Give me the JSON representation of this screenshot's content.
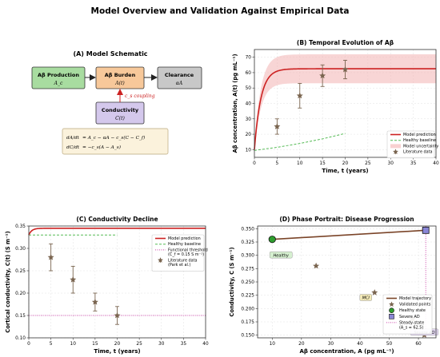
{
  "figure": {
    "title": "Model Overview and Validation Against Empirical Data"
  },
  "schematic": {
    "title": "(A) Model Schematic",
    "nodes": {
      "production": {
        "label": "Aβ Production",
        "sub": "A_c"
      },
      "burden": {
        "label": "Aβ Burden",
        "sub": "A(t)"
      },
      "clearance": {
        "label": "Clearance",
        "sub": "αA"
      },
      "conductivity": {
        "label": "Conductivity",
        "sub": "C(t)"
      }
    },
    "coupling_label": "c_s coupling",
    "equations": {
      "eq1_lhs": "dA/dt",
      "eq1_rhs": "= A_c − αA − c_s(C − C_f)",
      "eq2_lhs": "dC/dt",
      "eq2_rhs": "= −c_s(A − A_s)"
    },
    "colors": {
      "production": "#a8dca0",
      "burden": "#f7c89a",
      "clearance": "#c8c8c8",
      "conductivity": "#d4c8ec",
      "coupling": "#cc2222",
      "equation_box": "#fbf2dc"
    }
  },
  "chart_data": [
    {
      "id": "B",
      "type": "line",
      "title": "(B) Temporal Evolution of Aβ",
      "xlabel": "Time, t (years)",
      "ylabel": "Aβ concentration, A(t) (pg mL⁻¹)",
      "xlim": [
        0,
        40
      ],
      "ylim": [
        5,
        75
      ],
      "xticks": [
        0,
        5,
        10,
        15,
        20,
        25,
        30,
        35,
        40
      ],
      "yticks": [
        10,
        20,
        30,
        40,
        50,
        60,
        70
      ],
      "grid": true,
      "legend_position": "lower-right",
      "series": [
        {
          "name": "Model prediction",
          "kind": "curve",
          "color": "#cc2222",
          "model": {
            "start": 10,
            "plateau": 62.5,
            "rate": 0.7,
            "t_max": 40
          }
        },
        {
          "name": "Healthy baseline",
          "kind": "dashed",
          "color": "#55bb55",
          "x": [
            0,
            5,
            10,
            15,
            20
          ],
          "y": [
            9.5,
            11.5,
            14,
            17,
            20.5
          ]
        },
        {
          "name": "Model uncertainty",
          "kind": "band",
          "color": "#f3b3b3",
          "lower_factor": 0.85,
          "upper_factor": 1.15
        },
        {
          "name": "Literature data",
          "kind": "errorbar",
          "color": "#7a6550",
          "x": [
            5,
            10,
            15,
            20
          ],
          "y": [
            25,
            45,
            58,
            62
          ],
          "err": [
            5,
            8,
            7,
            6
          ]
        }
      ]
    },
    {
      "id": "C",
      "type": "line",
      "title": "(C) Conductivity Decline",
      "xlabel": "Time, t (years)",
      "ylabel": "Cortical conductivity, C(t) (S m⁻¹)",
      "xlim": [
        0,
        40
      ],
      "ylim": [
        0.1,
        0.35
      ],
      "xticks": [
        0,
        5,
        10,
        15,
        20,
        25,
        30,
        35,
        40
      ],
      "yticks": [
        0.1,
        0.15,
        0.2,
        0.25,
        0.3,
        0.35
      ],
      "ytick_labels": [
        "0.10",
        "0.15",
        "0.20",
        "0.25",
        "0.30",
        "0.35"
      ],
      "grid": true,
      "legend_position": "upper-right",
      "series": [
        {
          "name": "Model prediction",
          "kind": "curve",
          "color": "#cc2222",
          "model": {
            "start": 0.33,
            "plateau": 0.345,
            "rate": 1.5,
            "t_max": 40
          }
        },
        {
          "name": "Healthy baseline",
          "kind": "dashed",
          "color": "#55bb55",
          "x": [
            0,
            20
          ],
          "y": [
            0.33,
            0.33
          ]
        },
        {
          "name": "Functional threshold",
          "name_line2": "(C_f = 0.15 S m⁻¹)",
          "kind": "dotted",
          "color": "#cc44aa",
          "x": [
            0,
            40
          ],
          "y": [
            0.15,
            0.15
          ]
        },
        {
          "name": "Literature data",
          "name_line2": "(Park et al.)",
          "kind": "errorbar",
          "color": "#7a6550",
          "x": [
            5,
            10,
            15,
            20
          ],
          "y": [
            0.28,
            0.23,
            0.18,
            0.15
          ],
          "err": [
            0.03,
            0.03,
            0.02,
            0.02
          ]
        }
      ]
    },
    {
      "id": "D",
      "type": "scatter",
      "title": "(D) Phase Portrait: Disease Progression",
      "xlabel": "Aβ concentration, A (pg mL⁻¹)",
      "ylabel": "Conductivity, C (S m⁻¹)",
      "xlim": [
        5,
        66
      ],
      "ylim": [
        0.145,
        0.355
      ],
      "xticks": [
        10,
        20,
        30,
        40,
        50,
        60
      ],
      "yticks": [
        0.15,
        0.175,
        0.2,
        0.225,
        0.25,
        0.275,
        0.3,
        0.325,
        0.35
      ],
      "ytick_labels": [
        "0.150",
        "0.175",
        "0.200",
        "0.225",
        "0.250",
        "0.275",
        "0.300",
        "0.325",
        "0.350"
      ],
      "grid": true,
      "legend_position": "lower-right",
      "series": [
        {
          "name": "Model trajectory",
          "kind": "line",
          "color": "#7a4428",
          "x": [
            10,
            62.5
          ],
          "y": [
            0.33,
            0.347
          ]
        },
        {
          "name": "Validated points",
          "kind": "stars",
          "color": "#7a6550",
          "x": [
            25,
            45,
            58,
            62
          ],
          "y": [
            0.28,
            0.23,
            0.18,
            0.15
          ]
        },
        {
          "name": "Healthy state",
          "kind": "circle",
          "color": "#2e9e2e",
          "x": [
            10
          ],
          "y": [
            0.33
          ]
        },
        {
          "name": "Severe AD",
          "kind": "square",
          "color": "#8a86d6",
          "x": [
            62.5
          ],
          "y": [
            0.347
          ]
        },
        {
          "name": "Steady-state",
          "name_line2": "(A_s = 62.5)",
          "kind": "vline",
          "color": "#cc44aa",
          "x": 62.5
        }
      ],
      "annotations": [
        {
          "text": "Healthy",
          "x": 13,
          "y": 0.3,
          "bg": "#d6f0d0"
        },
        {
          "text": "MCI",
          "x": 42,
          "y": 0.22,
          "bg": "#f4eab8"
        },
        {
          "text": "Severe AD",
          "x": 62,
          "y": 0.155,
          "bg": "#e4d8f4"
        }
      ]
    }
  ]
}
